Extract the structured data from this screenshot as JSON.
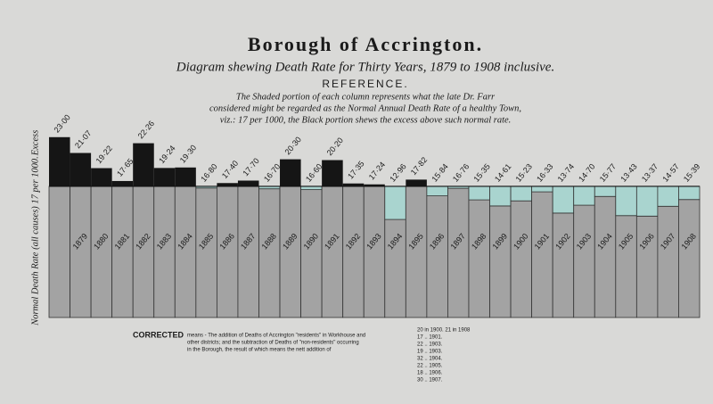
{
  "chart_data": {
    "type": "bar",
    "title": "Borough of Accrington.",
    "subtitle": "Diagram shewing Death Rate for Thirty Years, 1879 to 1908 inclusive.",
    "reference_heading": "REFERENCE.",
    "reference_lines": [
      "The Shaded portion of each column represents what the late Dr. Farr",
      "considered might be regarded as the Normal Annual Death Rate of a healthy Town,",
      "viz.: 17 per 1000, the Black portion shews the excess above such normal rate."
    ],
    "y_label": "Normal Death Rate (all causes) 17 per 1000.",
    "excess_label": "Excess",
    "baseline": 17,
    "categories": [
      null,
      "1879",
      "1880",
      "1881",
      "1882",
      "1883",
      "1884",
      "1885",
      "1886",
      "1887",
      "1888",
      "1889",
      "1890",
      "1891",
      "1892",
      "1893",
      "1894",
      "1895",
      "1896",
      "1897",
      "1898",
      "1899",
      "1900",
      "1901",
      "1902",
      "1903",
      "1904",
      "1905",
      "1906",
      "1907",
      "1908"
    ],
    "values": [
      23.0,
      21.07,
      19.22,
      17.65,
      22.26,
      19.24,
      19.3,
      16.8,
      17.4,
      17.7,
      16.7,
      20.3,
      16.6,
      20.2,
      17.35,
      17.24,
      12.96,
      17.82,
      15.84,
      16.76,
      15.35,
      14.61,
      15.23,
      16.33,
      13.74,
      14.7,
      15.77,
      13.43,
      13.37,
      14.57,
      15.39
    ],
    "value_labels": [
      "23·00",
      "21·07",
      "19·22",
      "17·65",
      "22·26",
      "19·24",
      "19·30",
      "16·80",
      "17·40",
      "17·70",
      "16·70",
      "20·30",
      "16·60",
      "20·20",
      "17·35",
      "17·24",
      "12·96",
      "17·82",
      "15·84",
      "16·76",
      "15·35",
      "14·61",
      "15·23",
      "16·33",
      "13·74",
      "14·70",
      "15·77",
      "13·43",
      "13·37",
      "14·57",
      "15·39"
    ],
    "ylim": [
      1,
      24.5
    ],
    "colors": {
      "normal": "#a3a3a3",
      "excess": "#151515",
      "deficit": "#a9d4cf"
    },
    "corrected_heading": "CORRECTED",
    "corrected_note": [
      "means - The addition of Deaths of Accrington \"residents\" in Workhouse and",
      "other districts; and the subtraction of Deaths of \"non-residents\" occurring",
      "in the Borough, the result of which means the nett addition of"
    ],
    "corrected_list": [
      "20 in 1900.   21 in 1908",
      "17 .. 1901.",
      "22 .. 1903.",
      "19 .. 1903.",
      "32 .. 1904.",
      "22 .. 1905.",
      "18 .. 1906.",
      "30 .. 1907."
    ]
  }
}
